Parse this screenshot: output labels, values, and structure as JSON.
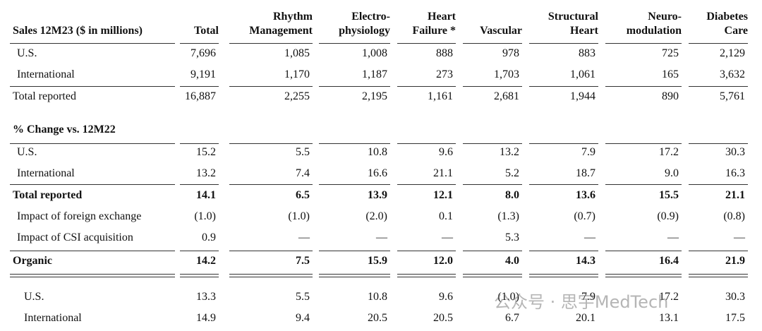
{
  "table": {
    "header": [
      "Sales 12M23 ($ in millions)",
      "Total",
      "Rhythm\nManagement",
      "Electro-\nphysiology",
      "Heart\nFailure *",
      "Vascular",
      "Structural\nHeart",
      "Neuro-\nmodulation",
      "Diabetes\nCare"
    ],
    "rows": [
      [
        "U.S.",
        "7,696",
        "1,085",
        "1,008",
        "888",
        "978",
        "883",
        "725",
        "2,129"
      ],
      [
        "International",
        "9,191",
        "1,170",
        "1,187",
        "273",
        "1,703",
        "1,061",
        "165",
        "3,632"
      ],
      [
        "Total reported",
        "16,887",
        "2,255",
        "2,195",
        "1,161",
        "2,681",
        "1,944",
        "890",
        "5,761"
      ],
      [
        "% Change vs. 12M22"
      ],
      [
        "U.S.",
        "15.2",
        "5.5",
        "10.8",
        "9.6",
        "13.2",
        "7.9",
        "17.2",
        "30.3"
      ],
      [
        "International",
        "13.2",
        "7.4",
        "16.6",
        "21.1",
        "5.2",
        "18.7",
        "9.0",
        "16.3"
      ],
      [
        "Total reported",
        "14.1",
        "6.5",
        "13.9",
        "12.1",
        "8.0",
        "13.6",
        "15.5",
        "21.1"
      ],
      [
        "Impact of foreign exchange",
        "(1.0)",
        "(1.0)",
        "(2.0)",
        "0.1",
        "(1.3)",
        "(0.7)",
        "(0.9)",
        "(0.8)"
      ],
      [
        "Impact of CSI acquisition",
        "0.9",
        "—",
        "—",
        "—",
        "5.3",
        "—",
        "—",
        "—"
      ],
      [
        "Organic",
        "14.2",
        "7.5",
        "15.9",
        "12.0",
        "4.0",
        "14.3",
        "16.4",
        "21.9"
      ],
      [
        "U.S.",
        "13.3",
        "5.5",
        "10.8",
        "9.6",
        "(1.0)",
        "7.9",
        "17.2",
        "30.3"
      ],
      [
        "International",
        "14.9",
        "9.4",
        "20.5",
        "20.5",
        "6.7",
        "20.1",
        "13.1",
        "17.5"
      ]
    ]
  },
  "watermark": "公众号 · 思宇MedTech"
}
